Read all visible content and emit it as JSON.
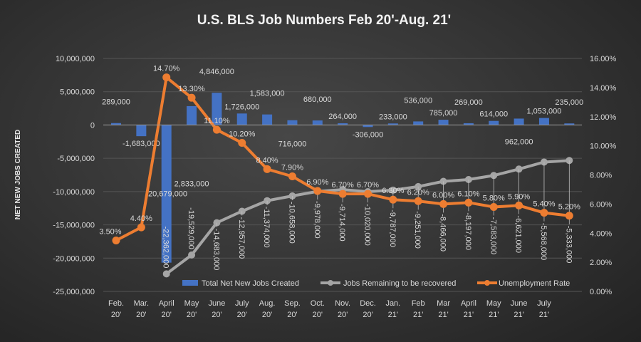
{
  "chart_data": {
    "type": "bar+line",
    "title": "U.S. BLS Job Numbers Feb 20'-Aug. 21'",
    "ylabel": "NET NEW JOBS CREATED",
    "ylim": [
      -25000000,
      10000000
    ],
    "y_ticks": [
      "10,000,000",
      "5,000,000",
      "0",
      "-5,000,000",
      "-10,000,000",
      "-15,000,000",
      "-20,000,000",
      "-25,000,000"
    ],
    "y2lim": [
      0,
      16
    ],
    "y2_ticks": [
      "16.00%",
      "14.00%",
      "12.00%",
      "10.00%",
      "8.00%",
      "6.00%",
      "4.00%",
      "2.00%",
      "0.00%"
    ],
    "categories": [
      [
        "Feb.",
        "20'"
      ],
      [
        "Mar.",
        "20'"
      ],
      [
        "April",
        "20'"
      ],
      [
        "May",
        "20'"
      ],
      [
        "June",
        "20'"
      ],
      [
        "July",
        "20'"
      ],
      [
        "Aug.",
        "20'"
      ],
      [
        "Sep.",
        "20'"
      ],
      [
        "Oct.",
        "20'"
      ],
      [
        "Nov.",
        "20'"
      ],
      [
        "Dec.",
        "20'"
      ],
      [
        "Jan.",
        "21'"
      ],
      [
        "Feb",
        "21'"
      ],
      [
        "Mar",
        "21'"
      ],
      [
        "April",
        "21'"
      ],
      [
        "May",
        "21'"
      ],
      [
        "June",
        "21'"
      ],
      [
        "July",
        "21'"
      ],
      [
        "",
        ""
      ]
    ],
    "legend_placement": "bottom-inside",
    "grid": true,
    "series": [
      {
        "name": "Total Net New Jobs Created",
        "type": "bar",
        "axis": "left",
        "color": "#4472c4",
        "values": [
          289000,
          -1683000,
          -20679000,
          2833000,
          4846000,
          1726000,
          1583000,
          716000,
          680000,
          264000,
          -306000,
          233000,
          536000,
          785000,
          269000,
          614000,
          962000,
          1053000,
          235000
        ],
        "labels": [
          "289,000",
          "-1,683,000",
          "-20,679,000",
          "2,833,000",
          "4,846,000",
          "1,726,000",
          "1,583,000",
          "716,000",
          "680,000",
          "264,000",
          "-306,000",
          "233,000",
          "536,000",
          "785,000",
          "269,000",
          "614,000",
          "962,000",
          "1,053,000",
          "235,000"
        ]
      },
      {
        "name": "Jobs Remaining to be recovered",
        "type": "line",
        "axis": "left",
        "color": "#a5a5a5",
        "values": [
          null,
          null,
          -22362000,
          -19529000,
          -14683000,
          -12957000,
          -11374000,
          -10658000,
          -9978000,
          -9714000,
          -10020000,
          -9787000,
          -9251000,
          -8466000,
          -8197000,
          -7583000,
          -6621000,
          -5568000,
          -5333000
        ],
        "labels": [
          null,
          null,
          "-22,362,000",
          "-19,529,000",
          "-14,683,000",
          "-12,957,000",
          "-11,374,000",
          "-10,658,000",
          "-9,978,000",
          "-9,714,000",
          "-10,020,000",
          "-9,787,000",
          "-9,251,000",
          "-8,466,000",
          "-8,197,000",
          "-7,583,000",
          "-6,621,000",
          "-5,568,000",
          "-5,333,000"
        ]
      },
      {
        "name": "Unemployment Rate",
        "type": "line",
        "axis": "right",
        "color": "#ed7d31",
        "values": [
          3.5,
          4.4,
          14.7,
          13.3,
          11.1,
          10.2,
          8.4,
          7.9,
          6.9,
          6.7,
          6.7,
          6.3,
          6.2,
          6.0,
          6.1,
          5.8,
          5.9,
          5.4,
          5.2
        ],
        "labels": [
          "3.50%",
          "4.40%",
          "14.70%",
          "13.30%",
          "11.10%",
          "10.20%",
          "8.40%",
          "7.90%",
          "6.90%",
          "6.70%",
          "6.70%",
          "6.30%",
          "6.20%",
          "6.00%",
          "6.10%",
          "5.80%",
          "5.90%",
          "5.40%",
          "5.20%"
        ]
      }
    ]
  }
}
